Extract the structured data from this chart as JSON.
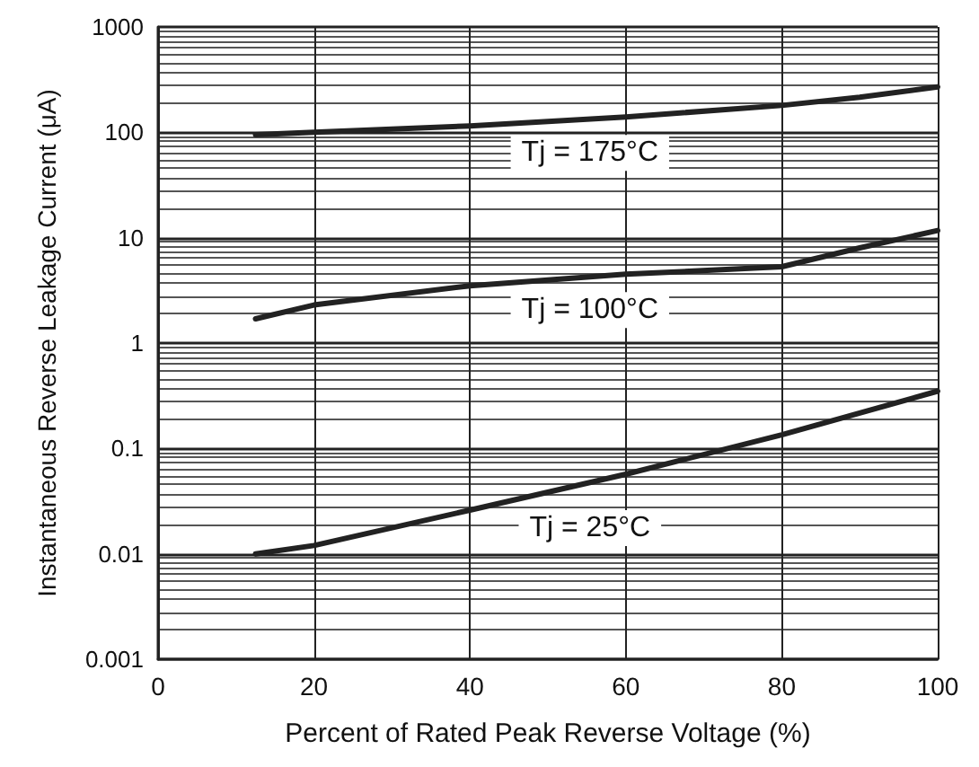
{
  "chart_data": {
    "type": "line",
    "xlabel": "Percent of Rated Peak Reverse Voltage (%)",
    "ylabel": "Instantaneous Reverse Leakage Current (μA)",
    "xlim": [
      0,
      100
    ],
    "xticks": [
      0,
      20,
      40,
      60,
      80,
      100
    ],
    "ylim": [
      0.001,
      1000
    ],
    "yticks": [
      0.001,
      0.01,
      0.1,
      1,
      10,
      100,
      1000
    ],
    "log": "y",
    "grid": true,
    "marker": "none",
    "line_style": "solid",
    "series": [
      {
        "name": "Tj = 175°C",
        "color": "#222222",
        "x": [
          12.5,
          20,
          40,
          60,
          80,
          90,
          100
        ],
        "values": [
          95,
          100,
          115,
          140,
          180,
          215,
          270
        ]
      },
      {
        "name": "Tj = 100°C",
        "color": "#222222",
        "x": [
          12.5,
          20,
          40,
          60,
          80,
          90,
          100
        ],
        "values": [
          1.7,
          2.3,
          3.5,
          4.5,
          5.3,
          8,
          11.7
        ]
      },
      {
        "name": "Tj = 25°C",
        "color": "#222222",
        "x": [
          12.5,
          20,
          40,
          60,
          80,
          100
        ],
        "values": [
          0.01,
          0.012,
          0.026,
          0.057,
          0.135,
          0.35
        ]
      }
    ]
  }
}
